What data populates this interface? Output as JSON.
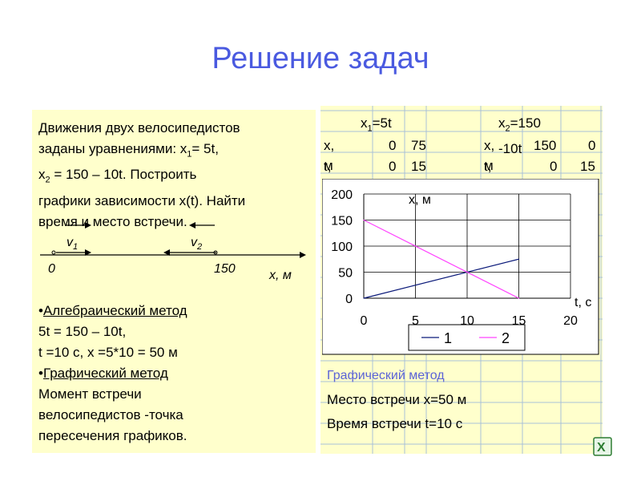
{
  "slide_title": "Решение задач",
  "problem": {
    "line1": "Движения двух велосипедистов",
    "line2_pre": "заданы уравнениями: x",
    "line2_sub": "1",
    "line2_post": "= 5t,",
    "line3_pre": "x",
    "line3_sub": "2",
    "line3_post": " = 150 – 10t. Построить",
    "line4": "графики зависимости x(t). Найти",
    "line5": "время и место встречи."
  },
  "diagram": {
    "v1": "v",
    "v1_sub": "1",
    "v2": "v",
    "v2_sub": "2",
    "origin": "0",
    "point": "150",
    "axis": "x, м"
  },
  "methods": {
    "algebraic_title": "Алгебраический метод",
    "eq1": "5t = 150 – 10t,",
    "eq2": " t =10 с, x =5*10 = 50 м",
    "graphic_title": "Графический метод",
    "conclusion1": "Момент встречи",
    "conclusion2": "велосипедистов -точка",
    "conclusion3": "пересечения графиков."
  },
  "table": {
    "x1_head": "x",
    "x1_sub": "1",
    "x1_eq": "=5t",
    "x2_head": "x",
    "x2_sub": "2",
    "x2_eq": "=150 -10t",
    "row_x_label": "x, м",
    "row_t_label": "t, с",
    "x1_values": [
      "0",
      "75"
    ],
    "t1_values": [
      "0",
      "15"
    ],
    "x2_values": [
      "150",
      "0"
    ],
    "t2_values": [
      "0",
      "15"
    ]
  },
  "chart_data": {
    "type": "line",
    "xlabel": "t, с",
    "ylabel": "x, м",
    "xlim": [
      0,
      20
    ],
    "ylim": [
      0,
      200
    ],
    "xticks": [
      0,
      5,
      10,
      15,
      20
    ],
    "yticks": [
      0,
      50,
      100,
      150,
      200
    ],
    "grid": true,
    "legend_position": "bottom",
    "series": [
      {
        "name": "1",
        "color": "#0b1a7a",
        "x": [
          0,
          15
        ],
        "y": [
          0,
          75
        ]
      },
      {
        "name": "2",
        "color": "#ff44ff",
        "x": [
          0,
          15
        ],
        "y": [
          150,
          0
        ]
      }
    ]
  },
  "caption": {
    "heading": "Графический метод",
    "meeting_place": "Место встречи x=50 м",
    "meeting_time": "Время встречи t=10 с"
  },
  "colors": {
    "title": "#4a5ae0",
    "panel": "#ffffcc",
    "grid": "#a8c0d8",
    "caption_heading": "#5b63d6"
  },
  "icons": {
    "corner": "excel-icon"
  }
}
